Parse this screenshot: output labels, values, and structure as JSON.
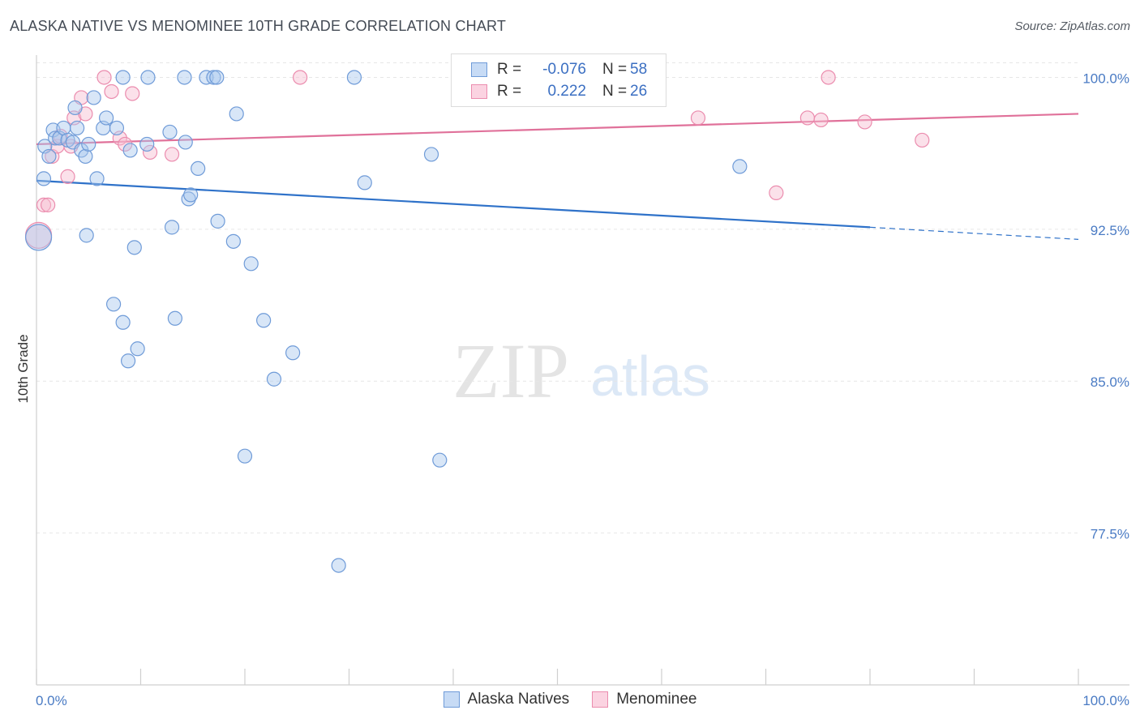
{
  "title": "ALASKA NATIVE VS MENOMINEE 10TH GRADE CORRELATION CHART",
  "source": "Source: ZipAtlas.com",
  "watermark": {
    "zip": "ZIP",
    "atlas": "atlas"
  },
  "colors": {
    "blue_fill": "#a9c8ee",
    "blue_stroke": "#6f9bd8",
    "blue_line": "#2f72c9",
    "pink_fill": "#f7bcd0",
    "pink_stroke": "#eb8cae",
    "pink_line": "#e0719a",
    "tick_text": "#4a7bc4"
  },
  "legend": {
    "rows": [
      {
        "r_label": "R =",
        "r_value": "-0.076",
        "n_label": "N =",
        "n_value": "58"
      },
      {
        "r_label": "R =",
        "r_value": "0.222",
        "n_label": "N =",
        "n_value": "26"
      }
    ]
  },
  "chart_data": {
    "type": "scatter",
    "title": "ALASKA NATIVE VS MENOMINEE 10TH GRADE CORRELATION CHART",
    "xlabel": "",
    "ylabel": "10th Grade",
    "xlim": [
      0,
      100
    ],
    "ylim": [
      70,
      101.5
    ],
    "x_tick_labels": [
      "0.0%",
      "100.0%"
    ],
    "y_ticks": [
      77.5,
      85.0,
      92.5,
      100.0
    ],
    "y_tick_labels": [
      "77.5%",
      "85.0%",
      "92.5%",
      "100.0%"
    ],
    "grid": "horizontal dashed",
    "legend_position": "top-center",
    "series": [
      {
        "name": "Alaska Natives",
        "points": [
          [
            0.2,
            92.1
          ],
          [
            0.7,
            95.0
          ],
          [
            0.8,
            96.6
          ],
          [
            1.2,
            96.1
          ],
          [
            1.6,
            97.4
          ],
          [
            1.8,
            97.0
          ],
          [
            2.2,
            97.0
          ],
          [
            2.6,
            97.5
          ],
          [
            3.0,
            96.9
          ],
          [
            3.5,
            96.8
          ],
          [
            3.7,
            98.5
          ],
          [
            3.9,
            97.5
          ],
          [
            4.3,
            96.4
          ],
          [
            4.7,
            96.1
          ],
          [
            4.8,
            92.2
          ],
          [
            5.0,
            96.7
          ],
          [
            5.5,
            99.0
          ],
          [
            5.8,
            95.0
          ],
          [
            6.4,
            97.5
          ],
          [
            6.7,
            98.0
          ],
          [
            7.4,
            88.8
          ],
          [
            7.7,
            97.5
          ],
          [
            8.3,
            100.0
          ],
          [
            8.3,
            87.9
          ],
          [
            8.8,
            86.0
          ],
          [
            9.0,
            96.4
          ],
          [
            9.4,
            91.6
          ],
          [
            9.7,
            86.6
          ],
          [
            10.6,
            96.7
          ],
          [
            10.7,
            100.0
          ],
          [
            12.8,
            97.3
          ],
          [
            13.0,
            92.6
          ],
          [
            13.3,
            88.1
          ],
          [
            14.2,
            100.0
          ],
          [
            14.3,
            96.8
          ],
          [
            14.6,
            94.0
          ],
          [
            14.8,
            94.2
          ],
          [
            15.5,
            95.5
          ],
          [
            16.3,
            100.0
          ],
          [
            17.0,
            100.0
          ],
          [
            17.3,
            100.0
          ],
          [
            17.4,
            92.9
          ],
          [
            18.9,
            91.9
          ],
          [
            19.2,
            98.2
          ],
          [
            20.0,
            81.3
          ],
          [
            20.6,
            90.8
          ],
          [
            21.8,
            88.0
          ],
          [
            22.8,
            85.1
          ],
          [
            24.6,
            86.4
          ],
          [
            29.0,
            75.9
          ],
          [
            30.5,
            100.0
          ],
          [
            31.5,
            94.8
          ],
          [
            37.9,
            96.2
          ],
          [
            38.7,
            81.1
          ],
          [
            41.0,
            100.0
          ],
          [
            44.4,
            100.0
          ],
          [
            45.5,
            100.0
          ],
          [
            67.5,
            95.6
          ]
        ]
      },
      {
        "name": "Menominee",
        "points": [
          [
            0.2,
            92.2
          ],
          [
            0.7,
            93.7
          ],
          [
            1.1,
            93.7
          ],
          [
            1.5,
            96.1
          ],
          [
            2.0,
            96.6
          ],
          [
            2.3,
            97.1
          ],
          [
            3.0,
            95.1
          ],
          [
            3.3,
            96.6
          ],
          [
            3.6,
            98.0
          ],
          [
            4.3,
            99.0
          ],
          [
            4.7,
            98.2
          ],
          [
            6.5,
            100.0
          ],
          [
            7.2,
            99.3
          ],
          [
            8.0,
            97.0
          ],
          [
            8.5,
            96.7
          ],
          [
            9.2,
            99.2
          ],
          [
            10.9,
            96.3
          ],
          [
            13.0,
            96.2
          ],
          [
            25.3,
            100.0
          ],
          [
            63.5,
            98.0
          ],
          [
            71.0,
            94.3
          ],
          [
            74.0,
            98.0
          ],
          [
            75.3,
            97.9
          ],
          [
            76.0,
            100.0
          ],
          [
            79.5,
            97.8
          ],
          [
            85.0,
            96.9
          ]
        ]
      }
    ],
    "trend_lines": [
      {
        "series": "Alaska Natives",
        "from": [
          0,
          94.9
        ],
        "to": [
          80,
          92.6
        ],
        "dashed_to": [
          100,
          92.0
        ]
      },
      {
        "series": "Menominee",
        "from": [
          0,
          96.7
        ],
        "to": [
          100,
          98.2
        ]
      }
    ]
  }
}
